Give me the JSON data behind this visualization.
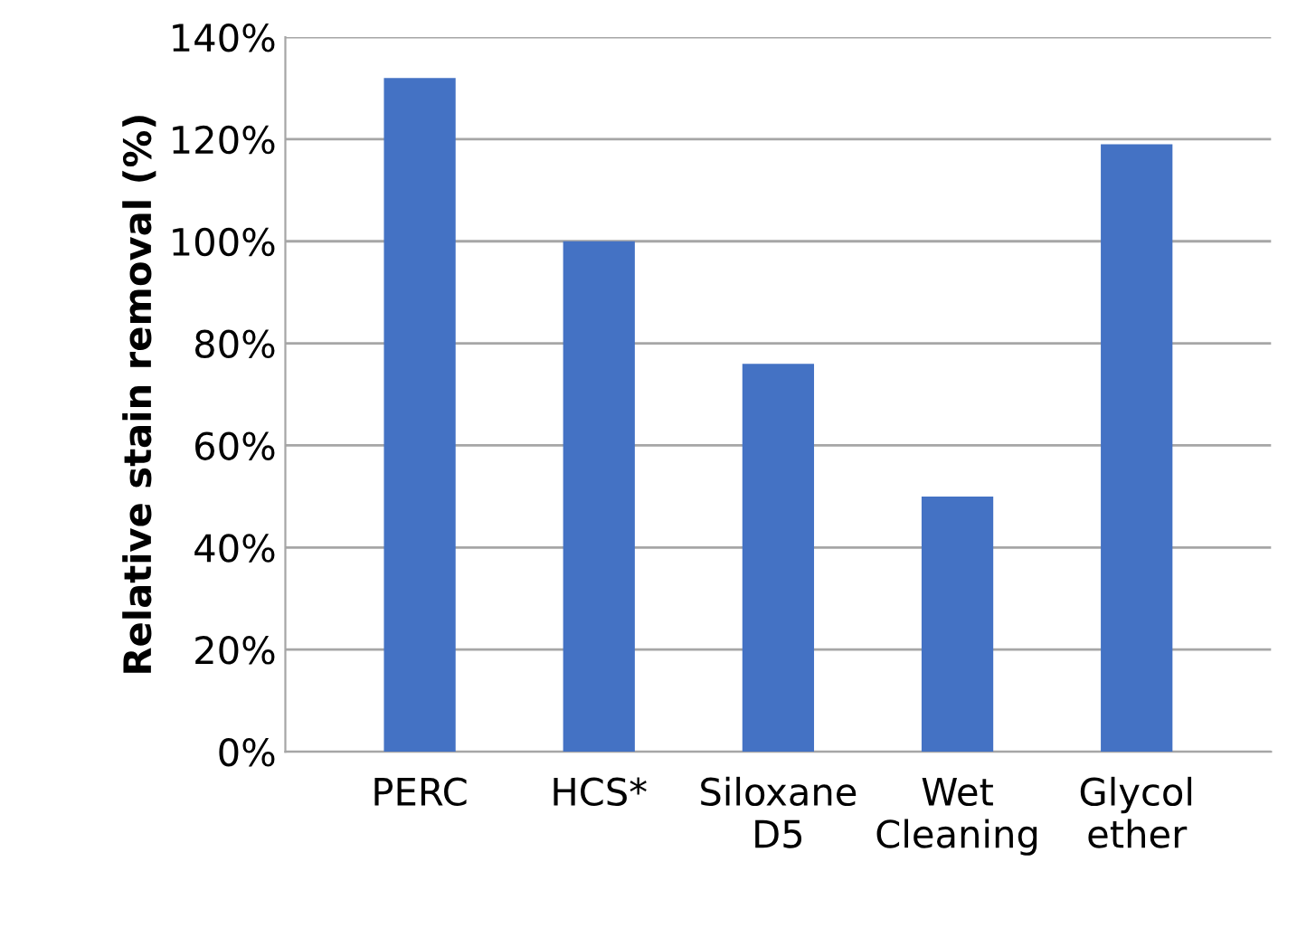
{
  "chart_data": {
    "type": "bar",
    "ylabel": "Relative stain removal (%)",
    "categories": [
      "PERC",
      "HCS*",
      "Siloxane\nD5",
      "Wet\nCleaning",
      "Glycol\nether"
    ],
    "values": [
      132,
      100,
      76,
      50,
      119
    ],
    "color": "#4472c4",
    "ylim": [
      0,
      140
    ],
    "yticks": [
      {
        "value": 0,
        "label": "0%"
      },
      {
        "value": 20,
        "label": "20%"
      },
      {
        "value": 40,
        "label": "40%"
      },
      {
        "value": 60,
        "label": "60%"
      },
      {
        "value": 80,
        "label": "80%"
      },
      {
        "value": 100,
        "label": "100%"
      },
      {
        "value": 120,
        "label": "120%"
      },
      {
        "value": 140,
        "label": "140%"
      }
    ],
    "grid": "y"
  }
}
